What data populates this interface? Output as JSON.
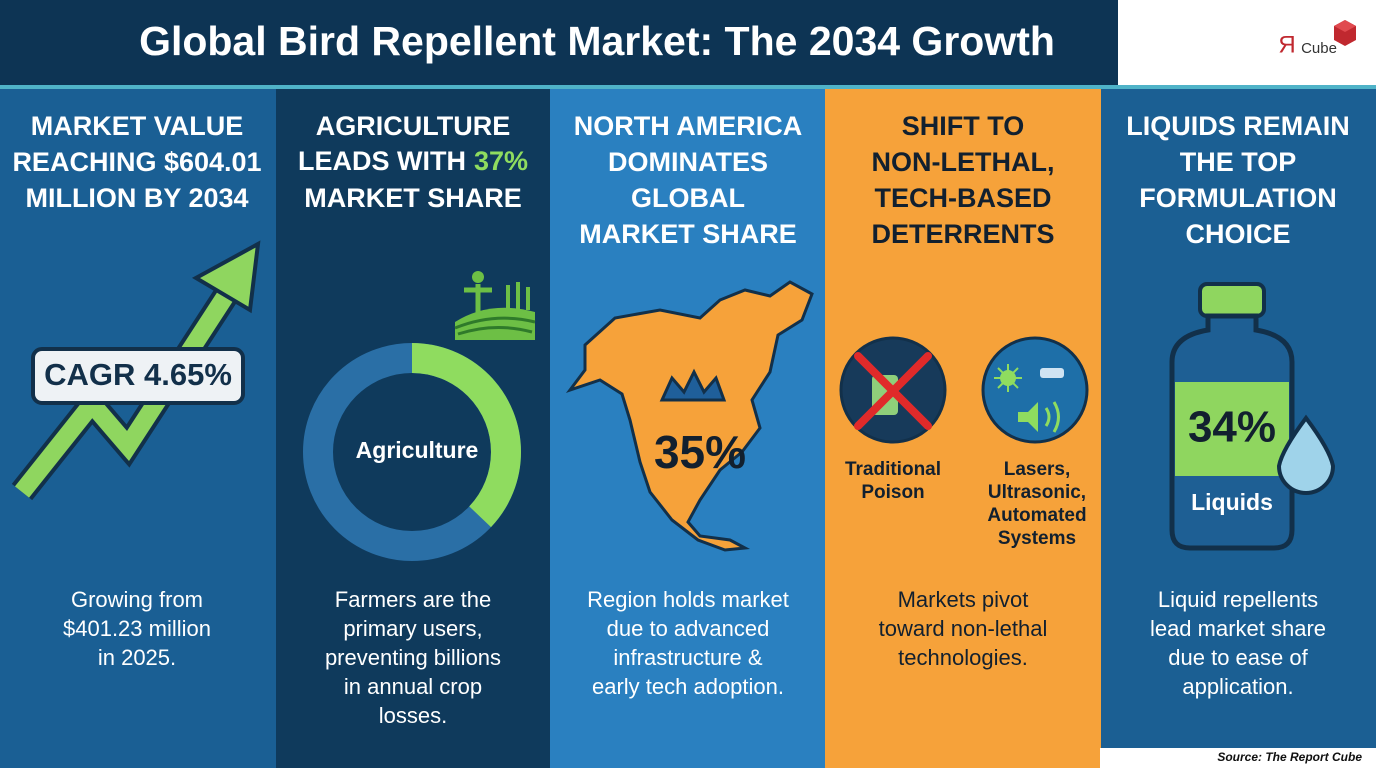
{
  "header": {
    "title": "Global Bird Repellent Market: The 2034 Growth",
    "logo_mark": "Я",
    "logo_text": "Cube"
  },
  "panels": [
    {
      "heading": [
        "MARKET VALUE",
        "REACHING $604.01",
        "MILLION BY 2034"
      ],
      "badge": "CAGR 4.65%",
      "body": [
        "Growing from",
        "$401.23 million",
        "in 2025."
      ]
    },
    {
      "heading": [
        "AGRICULTURE",
        "LEADS WITH",
        "MARKET SHARE"
      ],
      "highlight": "37%",
      "donut_label": "Agriculture",
      "body": [
        "Farmers are the",
        "primary users,",
        "preventing billions",
        "in annual crop",
        "losses."
      ]
    },
    {
      "heading": [
        "NORTH AMERICA",
        "DOMINATES",
        "GLOBAL",
        "MARKET SHARE"
      ],
      "badge": "35%",
      "body": [
        "Region holds market",
        "due to advanced",
        "infrastructure &",
        "early tech adoption."
      ]
    },
    {
      "heading": [
        "SHIFT TO",
        "NON-LETHAL,",
        "TECH-BASED",
        "DETERRENTS"
      ],
      "icons": [
        {
          "label": [
            "Traditional",
            "Poison"
          ]
        },
        {
          "label": [
            "Lasers,",
            "Ultrasonic,",
            "Automated",
            "Systems"
          ]
        }
      ],
      "body": [
        "Markets pivot",
        "toward non-lethal",
        "technologies."
      ]
    },
    {
      "heading": [
        "LIQUIDS REMAIN",
        "THE TOP",
        "FORMULATION",
        "CHOICE"
      ],
      "badge": "34%",
      "label": "Liquids",
      "body": [
        "Liquid repellents",
        "lead market share",
        "due to ease of",
        "application."
      ]
    }
  ],
  "source": "Source: The Report Cube"
}
